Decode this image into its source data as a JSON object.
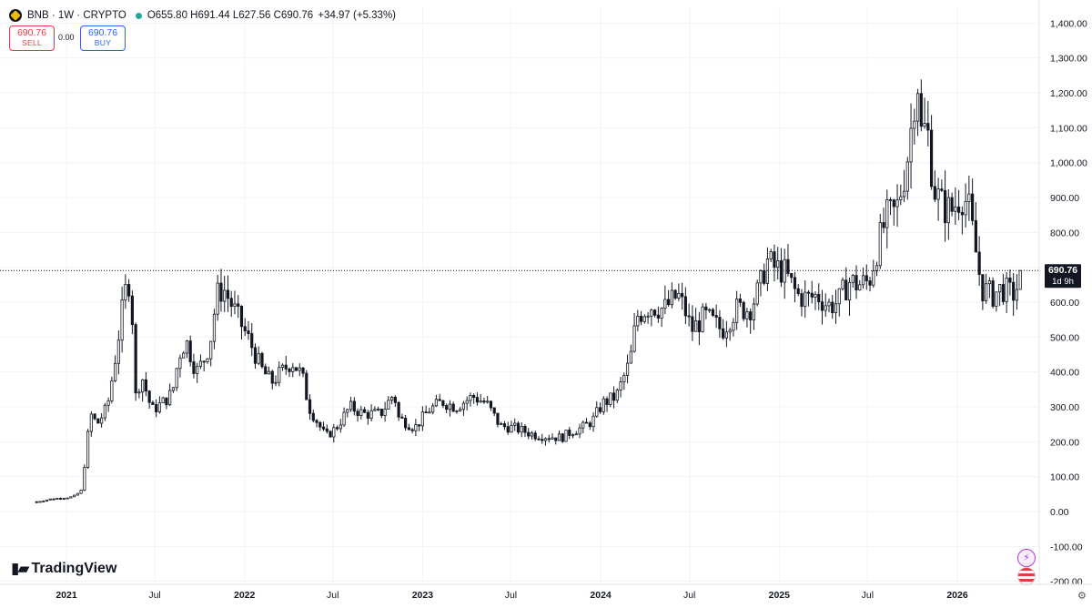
{
  "header": {
    "symbol": "BNB · 1W · CRYPTO",
    "open": "O655.80",
    "high": "H691.44",
    "low": "L627.56",
    "close": "C690.76",
    "change": "+34.97 (+5.33%)"
  },
  "trade": {
    "sell_price": "690.76",
    "sell_label": "SELL",
    "spread": "0.00",
    "buy_price": "690.76",
    "buy_label": "BUY"
  },
  "branding": {
    "name": "TradingView"
  },
  "colors": {
    "candle": "#131722",
    "grid": "#f0f3fa",
    "axis_text": "#131722",
    "price_tag_bg": "#131722"
  },
  "chart_data": {
    "type": "candlestick",
    "x_ticks": [
      "2021",
      "Jul",
      "2022",
      "Jul",
      "2023",
      "Jul",
      "2024",
      "Jul",
      "2025",
      "Jul",
      "2026"
    ],
    "y_ticks": [
      "1,400.00",
      "1,300.00",
      "1,200.00",
      "1,100.00",
      "1,000.00",
      "900.00",
      "800.00",
      "700.00",
      "600.00",
      "500.00",
      "400.00",
      "300.00",
      "200.00",
      "100.00",
      "0.00",
      "-100.00",
      "-200.00"
    ],
    "ylim": [
      -200,
      1400
    ],
    "grid": true,
    "last_price": 690.76,
    "last_price_label": "690.76",
    "countdown": "1d 9h",
    "x_dates": [
      "2021-01-01",
      "2021-07-01",
      "2022-01-01",
      "2022-07-01",
      "2023-01-01",
      "2023-07-01",
      "2024-01-01",
      "2024-07-01",
      "2025-01-01",
      "2025-07-01",
      "2026-01-01"
    ],
    "close_path": [
      [
        "2020-11-01",
        28
      ],
      [
        "2020-12-01",
        36
      ],
      [
        "2021-01-15",
        42
      ],
      [
        "2021-02-01",
        60
      ],
      [
        "2021-02-19",
        280
      ],
      [
        "2021-03-05",
        250
      ],
      [
        "2021-03-26",
        300
      ],
      [
        "2021-04-09",
        420
      ],
      [
        "2021-04-30",
        620
      ],
      [
        "2021-05-07",
        660
      ],
      [
        "2021-05-14",
        650
      ],
      [
        "2021-05-21",
        320
      ],
      [
        "2021-06-04",
        390
      ],
      [
        "2021-06-25",
        290
      ],
      [
        "2021-07-16",
        310
      ],
      [
        "2021-08-06",
        340
      ],
      [
        "2021-08-20",
        450
      ],
      [
        "2021-09-03",
        490
      ],
      [
        "2021-09-24",
        400
      ],
      [
        "2021-10-08",
        430
      ],
      [
        "2021-10-22",
        480
      ],
      [
        "2021-11-05",
        620
      ],
      [
        "2021-11-19",
        640
      ],
      [
        "2021-12-03",
        600
      ],
      [
        "2021-12-24",
        540
      ],
      [
        "2022-01-14",
        480
      ],
      [
        "2022-02-04",
        410
      ],
      [
        "2022-02-25",
        370
      ],
      [
        "2022-03-18",
        400
      ],
      [
        "2022-04-08",
        430
      ],
      [
        "2022-04-29",
        390
      ],
      [
        "2022-05-13",
        300
      ],
      [
        "2022-06-10",
        230
      ],
      [
        "2022-06-17",
        215
      ],
      [
        "2022-07-08",
        240
      ],
      [
        "2022-08-05",
        300
      ],
      [
        "2022-09-02",
        280
      ],
      [
        "2022-10-07",
        280
      ],
      [
        "2022-11-04",
        340
      ],
      [
        "2022-11-11",
        270
      ],
      [
        "2022-12-16",
        240
      ],
      [
        "2023-01-13",
        290
      ],
      [
        "2023-02-10",
        315
      ],
      [
        "2023-03-10",
        300
      ],
      [
        "2023-04-14",
        330
      ],
      [
        "2023-05-12",
        310
      ],
      [
        "2023-06-09",
        245
      ],
      [
        "2023-07-07",
        240
      ],
      [
        "2023-08-18",
        220
      ],
      [
        "2023-09-15",
        215
      ],
      [
        "2023-10-13",
        212
      ],
      [
        "2023-11-03",
        230
      ],
      [
        "2023-11-24",
        240
      ],
      [
        "2023-12-15",
        260
      ],
      [
        "2024-01-05",
        310
      ],
      [
        "2024-02-02",
        330
      ],
      [
        "2024-03-01",
        430
      ],
      [
        "2024-03-15",
        560
      ],
      [
        "2024-04-12",
        590
      ],
      [
        "2024-05-10",
        580
      ],
      [
        "2024-06-07",
        620
      ],
      [
        "2024-06-21",
        580
      ],
      [
        "2024-07-05",
        520
      ],
      [
        "2024-08-02",
        560
      ],
      [
        "2024-09-06",
        520
      ],
      [
        "2024-10-04",
        580
      ],
      [
        "2024-11-01",
        580
      ],
      [
        "2024-11-22",
        640
      ],
      [
        "2024-12-06",
        720
      ],
      [
        "2024-12-20",
        700
      ],
      [
        "2025-01-10",
        690
      ],
      [
        "2025-02-07",
        620
      ],
      [
        "2025-02-28",
        610
      ],
      [
        "2025-03-21",
        620
      ],
      [
        "2025-04-11",
        590
      ],
      [
        "2025-05-02",
        600
      ],
      [
        "2025-05-23",
        660
      ],
      [
        "2025-06-13",
        650
      ],
      [
        "2025-07-04",
        660
      ],
      [
        "2025-07-18",
        740
      ],
      [
        "2025-08-08",
        840
      ],
      [
        "2025-08-29",
        860
      ],
      [
        "2025-09-19",
        1000
      ],
      [
        "2025-10-03",
        1150
      ],
      [
        "2025-10-10",
        1300
      ],
      [
        "2025-10-17",
        1080
      ],
      [
        "2025-10-31",
        1100
      ],
      [
        "2025-11-14",
        930
      ],
      [
        "2025-11-28",
        880
      ],
      [
        "2025-12-19",
        860
      ],
      [
        "2026-01-09",
        910
      ],
      [
        "2026-01-23",
        880
      ],
      [
        "2026-02-06",
        760
      ],
      [
        "2026-02-20",
        640
      ],
      [
        "2026-03-13",
        620
      ],
      [
        "2026-04-03",
        640
      ],
      [
        "2026-04-24",
        620
      ],
      [
        "2026-05-08",
        655
      ],
      [
        "2026-05-15",
        690.76
      ]
    ]
  }
}
